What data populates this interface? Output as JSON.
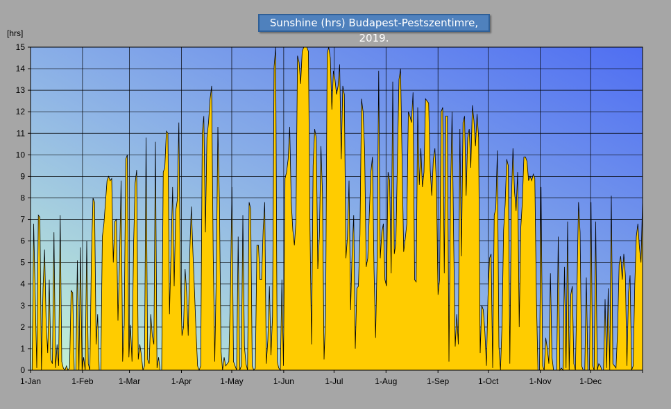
{
  "chart_data": {
    "type": "area",
    "title": "Sunshine (hrs) Budapest-Pestszentimre, 2019.",
    "ylabel": "[hrs]",
    "ylim": [
      0,
      15
    ],
    "yticks": [
      0,
      1,
      2,
      3,
      4,
      5,
      6,
      7,
      8,
      9,
      10,
      11,
      12,
      13,
      14,
      15
    ],
    "xlim": [
      "2019-01-01",
      "2019-12-31"
    ],
    "x_tick_labels": [
      "1-Jan",
      "1-Feb",
      "1-Mar",
      "1-Apr",
      "1-May",
      "1-Jun",
      "1-Jul",
      "1-Aug",
      "1-Sep",
      "1-Oct",
      "1-Nov",
      "1-Dec"
    ],
    "x_tick_dates": [
      "2019-01-01",
      "2019-02-01",
      "2019-03-01",
      "2019-04-01",
      "2019-05-01",
      "2019-06-01",
      "2019-07-01",
      "2019-08-01",
      "2019-09-01",
      "2019-10-01",
      "2019-11-01",
      "2019-12-01"
    ],
    "grid": true,
    "series": [
      {
        "color": "#ffcc00",
        "x_start": "2019-01-01",
        "values": [
          0,
          0,
          6.8,
          3.5,
          0.1,
          7.2,
          7.1,
          0,
          3.8,
          5.6,
          2.2,
          0.8,
          4.2,
          0.5,
          0.3,
          6.4,
          0.1,
          1.2,
          0.2,
          7.2,
          0.4,
          0.1,
          0,
          0.2,
          0,
          0.1,
          3.7,
          3.6,
          0,
          0,
          5.1,
          0,
          5.7,
          0,
          0.6,
          0,
          6,
          0.3,
          0,
          5.3,
          8,
          7.8,
          1.2,
          2.6,
          0,
          0,
          6.2,
          6.8,
          7.8,
          8.8,
          9,
          8.8,
          8.9,
          5,
          6.9,
          7,
          2.3,
          5.1,
          8.8,
          0.4,
          2.1,
          9.8,
          10,
          0.6,
          2.1,
          0.4,
          5.8,
          8.7,
          9.3,
          0.5,
          1.2,
          0.7,
          0,
          0.2,
          10.8,
          0.5,
          0.3,
          2.6,
          1.6,
          1.2,
          10.6,
          0.1,
          0.6,
          0,
          0,
          9.2,
          9.4,
          11.1,
          11,
          2.6,
          5.5,
          8.5,
          3.9,
          7.4,
          7.9,
          11.5,
          4.4,
          1.6,
          2,
          4.7,
          3.6,
          1.6,
          5.5,
          7.6,
          5.5,
          3.7,
          1.8,
          0.2,
          0,
          0.2,
          11,
          11.8,
          6.4,
          10.8,
          11.5,
          12.6,
          13.2,
          5.4,
          0.4,
          4.6,
          11.3,
          7.8,
          0.9,
          0,
          0.6,
          0.2,
          0.3,
          0.4,
          3.5,
          8.5,
          0.4,
          0.2,
          0,
          6.2,
          0,
          0.2,
          7.2,
          1.1,
          0.3,
          0,
          7.8,
          7.5,
          0.2,
          0,
          0.1,
          5.8,
          5.8,
          4.2,
          4.2,
          6.5,
          7.8,
          0.3,
          1.4,
          3.9,
          0.7,
          2.5,
          14.1,
          15,
          0.4,
          0.1,
          0,
          4.2,
          0.2,
          8.9,
          9.2,
          9.8,
          11.3,
          7.8,
          6.5,
          5.8,
          6.9,
          14.6,
          14.3,
          13.3,
          14.8,
          15,
          15,
          15,
          14.8,
          6.5,
          1.2,
          9.5,
          11.2,
          10.8,
          4.7,
          6.2,
          10.4,
          8.2,
          0.5,
          2.5,
          14.7,
          15,
          14.5,
          12.1,
          13.9,
          13.5,
          12.8,
          13.2,
          14.2,
          9.8,
          13.2,
          12.8,
          5.2,
          6.2,
          8.8,
          2.8,
          5.5,
          7.2,
          1,
          3.8,
          3.9,
          6.3,
          12.6,
          12,
          10.2,
          4.8,
          5.2,
          7.3,
          9.2,
          9.9,
          4.7,
          1.5,
          5.1,
          13.9,
          5.2,
          6.4,
          6.8,
          4.2,
          3.9,
          9.2,
          8.8,
          4.5,
          13.4,
          5.4,
          5.9,
          9.8,
          13.5,
          14,
          9.7,
          5.5,
          6.1,
          6.8,
          12,
          11.8,
          11.5,
          12.9,
          4.2,
          4.1,
          12.2,
          8.6,
          10.3,
          8.5,
          9.2,
          12.6,
          12.5,
          12.4,
          9.3,
          8.1,
          9.8,
          10.3,
          8.6,
          3.5,
          4.2,
          12,
          12.2,
          4.5,
          11.8,
          11.8,
          0.4,
          8.2,
          12,
          6.1,
          1.1,
          2.6,
          1.2,
          11.2,
          5.3,
          11.5,
          11.8,
          8.1,
          10.8,
          11.2,
          9.4,
          12.3,
          11.6,
          10.4,
          11.9,
          10.8,
          0.8,
          3,
          2.8,
          1.8,
          0.2,
          3.4,
          5.2,
          5.4,
          0.1,
          7.2,
          7.5,
          10.2,
          1.1,
          0,
          2.1,
          6.5,
          7.7,
          9.8,
          9.5,
          0.3,
          7.9,
          10.3,
          8.3,
          7.4,
          9.2,
          2,
          6.6,
          7.8,
          9.9,
          9.9,
          9.7,
          8.8,
          9,
          8.8,
          9.1,
          8.9,
          3.4,
          0,
          0,
          8.5,
          0.2,
          0,
          1.5,
          1,
          0.3,
          4.5,
          0.6,
          0,
          0,
          0,
          6.2,
          0,
          0.1,
          0,
          4.8,
          0.1,
          6.9,
          0,
          3.5,
          3.9,
          0.3,
          0,
          3.8,
          7.8,
          6.4,
          0.2,
          0,
          0,
          4.3,
          0,
          0,
          7.8,
          0.2,
          0,
          6.9,
          0,
          0.3,
          0.2,
          0,
          0,
          3.3,
          0.1,
          3.8,
          0,
          8.1,
          0.3,
          0.2,
          0.1,
          1.8,
          4.9,
          5.3,
          4.2,
          5.4,
          4.4,
          0.2,
          3.6,
          4.4,
          0,
          0.2,
          3.9,
          6.2,
          6.8,
          5.7,
          5,
          7.9
        ]
      }
    ]
  }
}
